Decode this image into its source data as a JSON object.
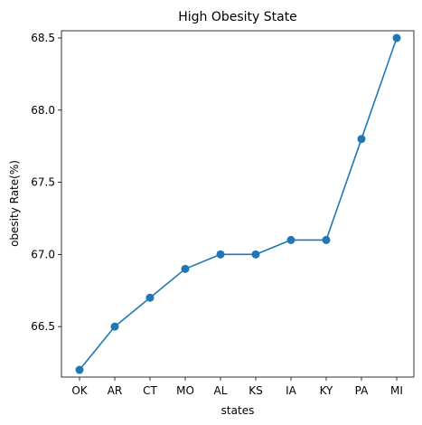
{
  "chart_data": {
    "type": "line",
    "title": "High Obesity State",
    "xlabel": "states",
    "ylabel": "obesity Rate(%)",
    "categories": [
      "OK",
      "AR",
      "CT",
      "MO",
      "AL",
      "KS",
      "IA",
      "KY",
      "PA",
      "MI"
    ],
    "series": [
      {
        "values": [
          66.2,
          66.5,
          66.7,
          66.9,
          67.0,
          67.0,
          67.1,
          67.1,
          67.8,
          68.5
        ],
        "color": "#1f77b4",
        "marker": "circle"
      }
    ],
    "ylim": [
      66.15,
      68.55
    ],
    "yticks": [
      "66.5",
      "67.0",
      "67.5",
      "68.0",
      "68.5"
    ],
    "grid": false,
    "legend": "none"
  }
}
